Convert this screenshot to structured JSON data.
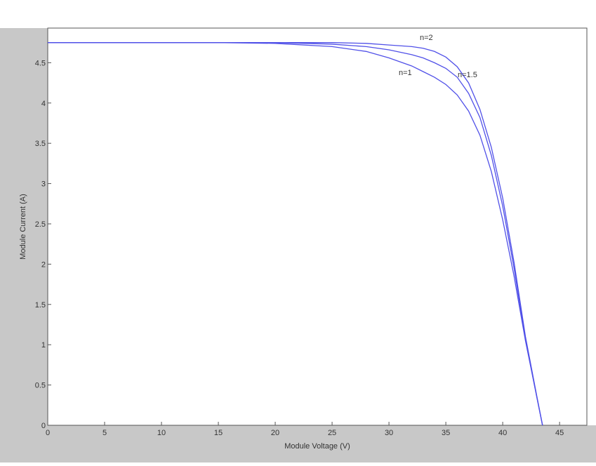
{
  "chart_data": {
    "type": "line",
    "x_label": "Module Voltage (V)",
    "y_label": "Module Current (A)",
    "x": [
      0,
      5,
      10,
      15,
      20,
      25,
      28,
      30,
      32,
      33,
      34,
      35,
      36,
      37,
      38,
      39,
      40,
      41,
      42,
      43,
      43.5
    ],
    "series": [
      {
        "name": "n=1",
        "color": "#5050e8",
        "values": [
          4.75,
          4.75,
          4.75,
          4.75,
          4.74,
          4.7,
          4.64,
          4.56,
          4.46,
          4.39,
          4.32,
          4.23,
          4.1,
          3.9,
          3.6,
          3.15,
          2.55,
          1.85,
          1.05,
          0.35,
          0
        ]
      },
      {
        "name": "n=1.5",
        "color": "#5050e8",
        "values": [
          4.75,
          4.75,
          4.75,
          4.75,
          4.75,
          4.73,
          4.7,
          4.66,
          4.6,
          4.56,
          4.5,
          4.43,
          4.32,
          4.12,
          3.82,
          3.35,
          2.72,
          1.95,
          1.07,
          0.35,
          0
        ]
      },
      {
        "name": "n=2",
        "color": "#5050e8",
        "values": [
          4.75,
          4.75,
          4.75,
          4.75,
          4.75,
          4.75,
          4.74,
          4.72,
          4.7,
          4.68,
          4.64,
          4.57,
          4.45,
          4.25,
          3.92,
          3.45,
          2.82,
          2.02,
          1.1,
          0.36,
          0
        ]
      }
    ],
    "annotations": [
      "n=2",
      "n=1.5",
      "n=1"
    ],
    "xlim": [
      0,
      47.4
    ],
    "ylim": [
      0,
      4.93
    ],
    "xticks": [
      0,
      5,
      10,
      15,
      20,
      25,
      30,
      35,
      40,
      45
    ],
    "yticks": [
      0,
      0.5,
      1,
      1.5,
      2,
      2.5,
      3,
      3.5,
      4,
      4.5
    ]
  }
}
